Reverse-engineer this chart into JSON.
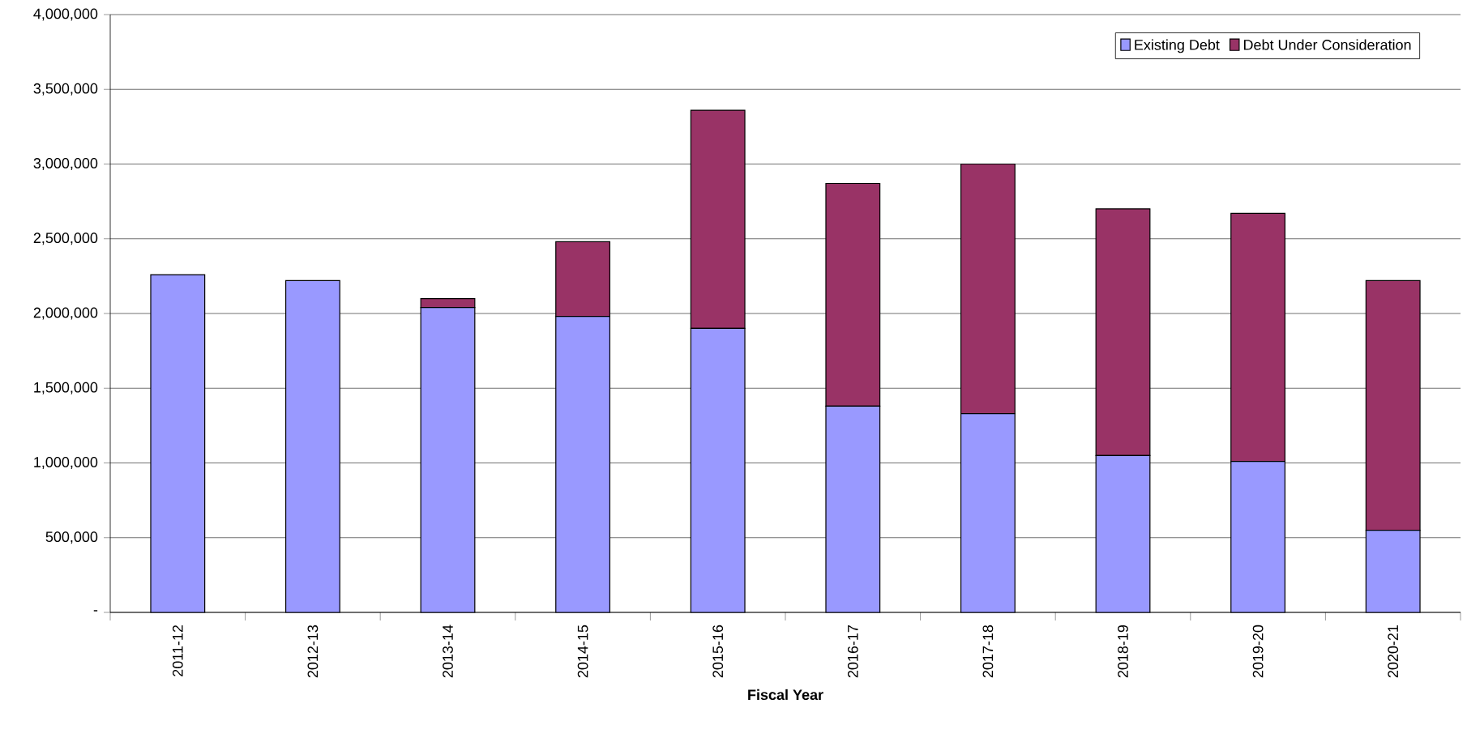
{
  "chart_data": {
    "type": "bar",
    "stacked": true,
    "xlabel": "Fiscal Year",
    "categories": [
      "2011-12",
      "2012-13",
      "2013-14",
      "2014-15",
      "2015-16",
      "2016-17",
      "2017-18",
      "2018-19",
      "2019-20",
      "2020-21"
    ],
    "series": [
      {
        "name": "Existing Debt",
        "color": "#9999ff",
        "values": [
          2260000,
          2220000,
          2040000,
          1980000,
          1900000,
          1380000,
          1330000,
          1050000,
          1010000,
          550000
        ]
      },
      {
        "name": "Debt Under Consideration",
        "color": "#993366",
        "values": [
          0,
          0,
          60000,
          500000,
          1460000,
          1490000,
          1670000,
          1650000,
          1660000,
          1670000
        ]
      }
    ],
    "ylim": [
      0,
      4000000
    ],
    "yticks": [
      {
        "value": 0,
        "label": "-"
      },
      {
        "value": 500000,
        "label": "500,000"
      },
      {
        "value": 1000000,
        "label": "1,000,000"
      },
      {
        "value": 1500000,
        "label": "1,500,000"
      },
      {
        "value": 2000000,
        "label": "2,000,000"
      },
      {
        "value": 2500000,
        "label": "2,500,000"
      },
      {
        "value": 3000000,
        "label": "3,000,000"
      },
      {
        "value": 3500000,
        "label": "3,500,000"
      },
      {
        "value": 4000000,
        "label": "4,000,000"
      }
    ],
    "grid": "y",
    "legend": "top right"
  }
}
